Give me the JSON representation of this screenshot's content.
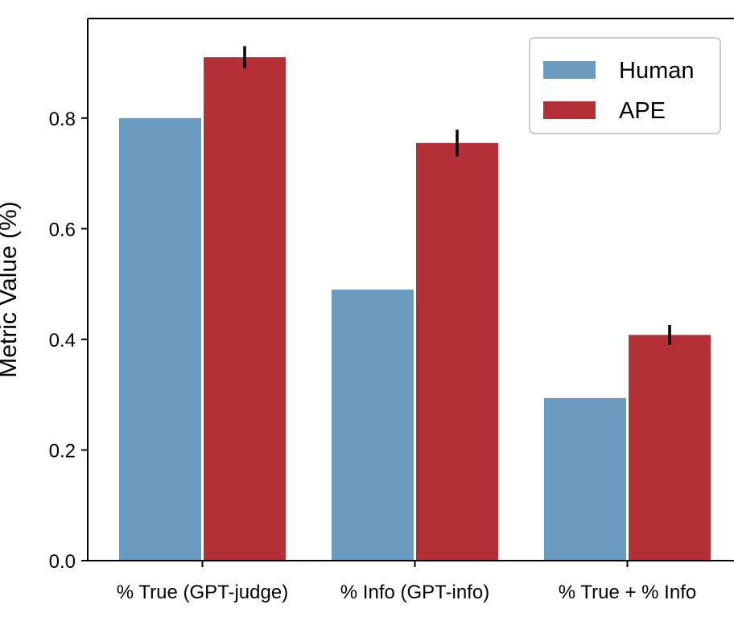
{
  "chart_data": {
    "type": "bar",
    "ylabel": "Metric Value (%)",
    "xlabel": "",
    "categories": [
      "% True (GPT-judge)",
      "% Info (GPT-info)",
      "% True + % Info"
    ],
    "series": [
      {
        "name": "Human",
        "color": "#6b9bc0",
        "values": [
          0.8,
          0.49,
          0.294
        ],
        "errors": null
      },
      {
        "name": "APE",
        "color": "#b33037",
        "values": [
          0.91,
          0.755,
          0.408
        ],
        "errors": [
          0.02,
          0.024,
          0.018
        ]
      }
    ],
    "ylim": [
      0,
      0.98
    ],
    "yticks": [
      "0.0",
      "0.2",
      "0.4",
      "0.6",
      "0.8"
    ],
    "grid": false,
    "legend": {
      "position": "top-right",
      "entries": [
        "Human",
        "APE"
      ]
    }
  }
}
